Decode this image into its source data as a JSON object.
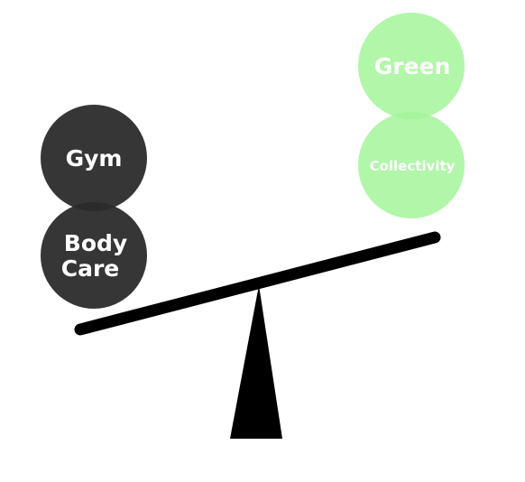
{
  "colors": {
    "heavy_side": "#2b2b2b",
    "light_side": "#a3f59a",
    "beam": "#000000",
    "fulcrum": "#000000",
    "background": "#ffffff",
    "label_text": "#ffffff"
  },
  "left_pan": {
    "balls": [
      {
        "label": "Gym"
      },
      {
        "label_lines": [
          "Body",
          "Care"
        ]
      }
    ]
  },
  "right_pan": {
    "balls": [
      {
        "label": "Green"
      },
      {
        "label": "Collectivity"
      }
    ]
  }
}
